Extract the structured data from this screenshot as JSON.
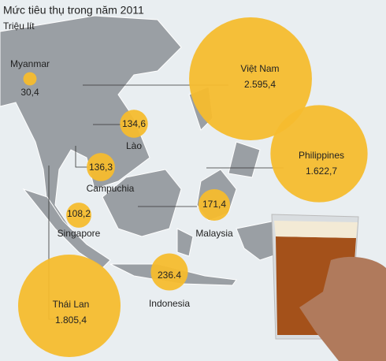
{
  "chart_data": {
    "type": "bubble",
    "title": "Mức tiêu thụ trong năm 2011",
    "subtitle": "Triệu lít",
    "color": "#f6bc2e",
    "categories": [
      "Myanmar",
      "Việt Nam",
      "Lào",
      "Campuchia",
      "Philippines",
      "Singapore",
      "Malaysia",
      "Indonesia",
      "Thái Lan"
    ],
    "values": [
      30.4,
      2595.4,
      134.6,
      136.3,
      1622.7,
      108.2,
      171.4,
      236.4,
      1805.4
    ],
    "value_labels": [
      "30,4",
      "2.595,4",
      "134,6",
      "136,3",
      "1.622,7",
      "108,2",
      "171,4",
      "236.4",
      "1.805,4"
    ]
  }
}
